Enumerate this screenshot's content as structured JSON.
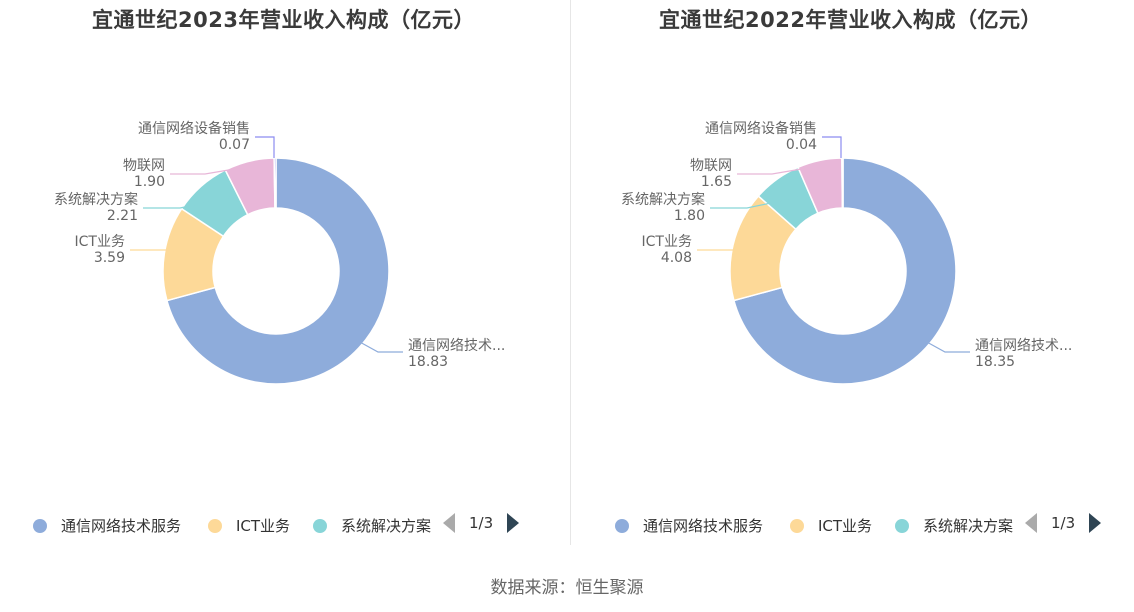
{
  "chart_data": [
    {
      "type": "pie",
      "title": "宜通世纪2023年营业收入构成（亿元）",
      "categories": [
        "通信网络技术服务",
        "ICT业务",
        "系统解决方案",
        "物联网",
        "通信网络设备销售"
      ],
      "label_names": [
        "通信网络技术...",
        "ICT业务",
        "系统解决方案",
        "物联网",
        "通信网络设备销售"
      ],
      "values": [
        18.83,
        3.59,
        2.21,
        1.9,
        0.07
      ],
      "value_labels": [
        "18.83",
        "3.59",
        "2.21",
        "1.90",
        "0.07"
      ],
      "colors": [
        "#8eacdb",
        "#fdd998",
        "#88d5d8",
        "#e8b6d8",
        "#8c8cf0"
      ],
      "legend": [
        "通信网络技术服务",
        "ICT业务",
        "系统解决方案"
      ],
      "legend_page": "1/3"
    },
    {
      "type": "pie",
      "title": "宜通世纪2022年营业收入构成（亿元）",
      "categories": [
        "通信网络技术服务",
        "ICT业务",
        "系统解决方案",
        "物联网",
        "通信网络设备销售"
      ],
      "label_names": [
        "通信网络技术...",
        "ICT业务",
        "系统解决方案",
        "物联网",
        "通信网络设备销售"
      ],
      "values": [
        18.35,
        4.08,
        1.8,
        1.65,
        0.04
      ],
      "value_labels": [
        "18.35",
        "4.08",
        "1.80",
        "1.65",
        "0.04"
      ],
      "colors": [
        "#8eacdb",
        "#fdd998",
        "#88d5d8",
        "#e8b6d8",
        "#8c8cf0"
      ],
      "legend": [
        "通信网络技术服务",
        "ICT业务",
        "系统解决方案"
      ],
      "legend_page": "1/3"
    }
  ],
  "footer": {
    "source": "数据来源：恒生聚源"
  }
}
